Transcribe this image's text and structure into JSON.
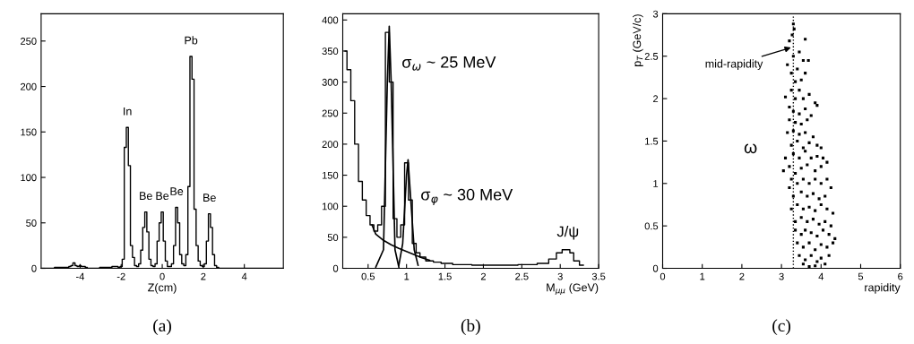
{
  "chart_data": [
    {
      "type": "step",
      "title": "(a)",
      "xlabel": "Z(cm)",
      "xlim": [
        -5.9,
        5.9
      ],
      "xticks": [
        -4,
        -2,
        0,
        2,
        4
      ],
      "ylim": [
        0,
        280
      ],
      "yticks": [
        0,
        50,
        100,
        150,
        200,
        250
      ],
      "grid": false,
      "series": [
        {
          "color": "#000000",
          "x": [
            -5.9,
            -4.6,
            -4.5,
            -4.4,
            -4.3,
            -4.2,
            -4.1,
            -4.0,
            -3.9,
            -3.8,
            -3.7,
            -3.6,
            -2.5,
            -2.4,
            -2.3,
            -2.2,
            -2.1,
            -2.0,
            -1.9,
            -1.8,
            -1.7,
            -1.6,
            -1.5,
            -1.4,
            -1.3,
            -1.2,
            -1.1,
            -1.0,
            -0.9,
            -0.8,
            -0.7,
            -0.6,
            -0.5,
            -0.4,
            -0.3,
            -0.2,
            -0.1,
            0.0,
            0.1,
            0.2,
            0.3,
            0.4,
            0.5,
            0.6,
            0.7,
            0.8,
            0.9,
            1.0,
            1.1,
            1.2,
            1.3,
            1.4,
            1.5,
            1.6,
            1.7,
            1.8,
            1.9,
            2.0,
            2.1,
            2.2,
            2.3,
            2.4,
            2.5,
            2.6,
            2.7,
            2.8,
            5.9
          ],
          "values": [
            0,
            1,
            2,
            3,
            6,
            3,
            2,
            3,
            2,
            2,
            1,
            0,
            1,
            2,
            2,
            2,
            1,
            2,
            10,
            133,
            155,
            113,
            25,
            12,
            3,
            2,
            5,
            20,
            45,
            62,
            40,
            10,
            3,
            2,
            5,
            30,
            50,
            62,
            30,
            8,
            2,
            2,
            5,
            25,
            67,
            50,
            15,
            5,
            3,
            15,
            90,
            233,
            208,
            65,
            25,
            8,
            3,
            2,
            5,
            30,
            60,
            45,
            15,
            3,
            1,
            0,
            0
          ]
        }
      ],
      "annotations": [
        {
          "text": "In",
          "x": -1.7,
          "y": 155
        },
        {
          "text": "Be",
          "x": -0.8,
          "y": 62
        },
        {
          "text": "Be",
          "x": 0.0,
          "y": 62
        },
        {
          "text": "Be",
          "x": 0.7,
          "y": 67
        },
        {
          "text": "Pb",
          "x": 1.4,
          "y": 233
        },
        {
          "text": "Be",
          "x": 2.3,
          "y": 60
        }
      ]
    },
    {
      "type": "line",
      "title": "(b)",
      "xlabel": "M$_{μμ}$ (GeV)",
      "xlim": [
        0.17,
        3.5
      ],
      "xticks": [
        0.5,
        1,
        1.5,
        2,
        2.5,
        3,
        3.5
      ],
      "ylim": [
        0,
        410
      ],
      "yticks": [
        0,
        50,
        100,
        150,
        200,
        250,
        300,
        350,
        400
      ],
      "grid": false,
      "series": [
        {
          "type": "step",
          "color": "#000000",
          "x": [
            0.2,
            0.25,
            0.3,
            0.35,
            0.4,
            0.45,
            0.5,
            0.55,
            0.6,
            0.65,
            0.7,
            0.75,
            0.8,
            0.85,
            0.9,
            0.95,
            1.0,
            1.05,
            1.1,
            1.15,
            1.2,
            1.3,
            1.4,
            1.5,
            1.7,
            2.0,
            2.3,
            2.6,
            2.8,
            2.9,
            3.0,
            3.05,
            3.1,
            3.15,
            3.2,
            3.3
          ],
          "values": [
            350,
            320,
            270,
            200,
            140,
            110,
            85,
            70,
            60,
            70,
            100,
            380,
            300,
            80,
            50,
            70,
            170,
            110,
            40,
            25,
            18,
            12,
            10,
            8,
            6,
            5,
            5,
            6,
            8,
            15,
            25,
            30,
            30,
            25,
            12,
            5
          ]
        },
        {
          "type": "line",
          "color": "#000000",
          "x": [
            0.6,
            0.7,
            0.75,
            0.775,
            0.8,
            0.85,
            0.9
          ],
          "values": [
            2,
            30,
            300,
            390,
            300,
            30,
            2
          ]
        },
        {
          "type": "line",
          "color": "#000000",
          "x": [
            0.9,
            0.95,
            1.0,
            1.02,
            1.05,
            1.1,
            1.15
          ],
          "values": [
            5,
            40,
            150,
            175,
            120,
            30,
            5
          ]
        },
        {
          "type": "line",
          "color": "#000000",
          "x": [
            0.55,
            0.6,
            0.7,
            0.8,
            0.9,
            1.0,
            1.1,
            1.2,
            1.3
          ],
          "values": [
            70,
            55,
            45,
            38,
            32,
            27,
            22,
            17,
            13
          ]
        }
      ],
      "annotations": [
        {
          "text": "σ$_{ω}$ ~ 25 MeV",
          "x": 0.775,
          "y": 390
        },
        {
          "text": "σ$_{φ}$ ~ 30 MeV",
          "x": 1.02,
          "y": 175
        },
        {
          "text": "J/ψ",
          "x": 3.1,
          "y": 30
        }
      ]
    },
    {
      "type": "scatter",
      "title": "(c)",
      "xlabel": "rapidity",
      "ylabel": "p$_{T}$ (GeV/c)",
      "xlim": [
        0,
        6
      ],
      "xticks": [
        0,
        1,
        2,
        3,
        4,
        5,
        6
      ],
      "ylim": [
        0,
        3
      ],
      "yticks": [
        0,
        0.5,
        1,
        1.5,
        2,
        2.5,
        3
      ],
      "grid": false,
      "marker": "square",
      "ref_lines": [
        {
          "axis": "x",
          "value": 3.3,
          "label": "mid-rapidity",
          "line_style": "dotted",
          "color": "#000000"
        }
      ],
      "annotations": [
        "ω"
      ],
      "series": [
        {
          "color": "#000000",
          "x": [
            3.3,
            3.32,
            3.27,
            3.6,
            3.2,
            3.45,
            3.3,
            3.55,
            3.68,
            3.15,
            3.25,
            3.4,
            3.6,
            3.35,
            3.5,
            3.1,
            3.25,
            3.45,
            3.7,
            3.85,
            3.9,
            3.55,
            3.35,
            3.2,
            3.3,
            3.45,
            3.6,
            3.75,
            3.35,
            3.5,
            3.65,
            3.2,
            3.15,
            3.3,
            3.45,
            3.6,
            3.8,
            3.25,
            3.4,
            3.55,
            3.7,
            3.9,
            4.0,
            3.1,
            3.3,
            3.45,
            3.6,
            3.75,
            3.9,
            4.05,
            4.15,
            3.2,
            3.5,
            3.65,
            3.85,
            4.0,
            3.35,
            3.05,
            3.25,
            3.4,
            3.55,
            3.7,
            3.85,
            4.0,
            4.15,
            4.25,
            3.3,
            3.5,
            3.65,
            3.8,
            3.95,
            4.1,
            3.2,
            3.25,
            3.4,
            3.55,
            3.7,
            3.85,
            4.0,
            4.15,
            4.3,
            3.35,
            3.5,
            3.65,
            3.8,
            3.95,
            4.1,
            4.25,
            3.35,
            3.5,
            3.6,
            3.75,
            3.9,
            4.05,
            4.2,
            4.35,
            3.4,
            3.55,
            3.7,
            3.85,
            4.0,
            4.15,
            4.3,
            3.45,
            3.6,
            3.75,
            3.9,
            4.0,
            4.1,
            3.55,
            3.85,
            4.2,
            3.7
          ],
          "values": [
            2.88,
            2.82,
            2.75,
            2.7,
            2.68,
            2.55,
            2.5,
            2.45,
            2.45,
            2.4,
            2.3,
            2.35,
            2.3,
            2.2,
            2.22,
            2.02,
            2.1,
            2.1,
            2.05,
            1.95,
            1.92,
            2.0,
            2.0,
            1.9,
            1.85,
            1.82,
            1.88,
            1.8,
            1.72,
            1.7,
            1.75,
            1.75,
            1.6,
            1.62,
            1.58,
            1.6,
            1.55,
            1.45,
            1.5,
            1.42,
            1.48,
            1.45,
            1.42,
            1.3,
            1.35,
            1.3,
            1.38,
            1.3,
            1.32,
            1.3,
            1.25,
            1.2,
            1.18,
            1.22,
            1.15,
            1.2,
            1.12,
            1.15,
            1.05,
            1.0,
            1.05,
            1.0,
            1.05,
            1.0,
            1.05,
            0.95,
            0.85,
            0.9,
            0.85,
            0.88,
            0.82,
            0.85,
            0.95,
            0.7,
            0.75,
            0.7,
            0.72,
            0.68,
            0.75,
            0.7,
            0.65,
            0.55,
            0.6,
            0.55,
            0.58,
            0.52,
            0.55,
            0.5,
            0.45,
            0.4,
            0.45,
            0.42,
            0.38,
            0.45,
            0.4,
            0.35,
            0.3,
            0.25,
            0.3,
            0.22,
            0.28,
            0.25,
            0.3,
            0.15,
            0.1,
            0.15,
            0.08,
            0.12,
            0.05,
            0.05,
            0.03,
            0.15,
            0.02
          ]
        }
      ]
    }
  ]
}
